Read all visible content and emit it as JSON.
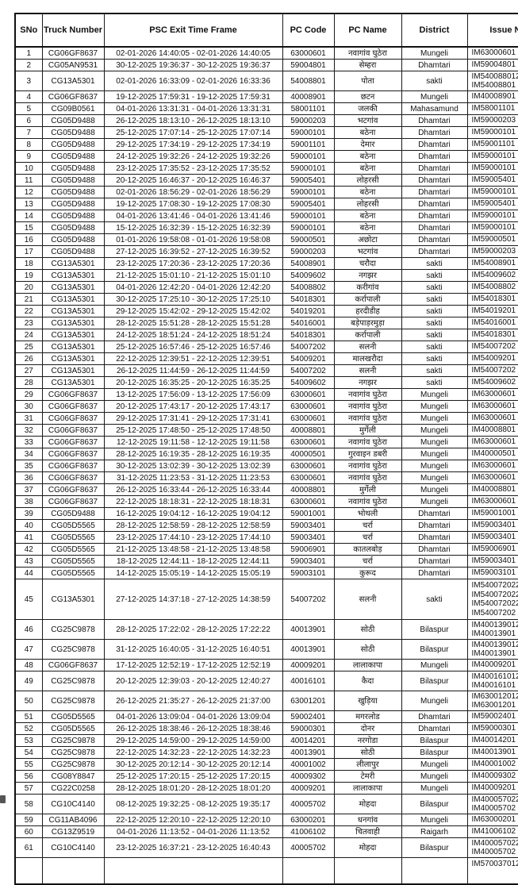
{
  "table": {
    "columns": [
      {
        "key": "sno",
        "label": "SNo"
      },
      {
        "key": "truck",
        "label": "Truck Number"
      },
      {
        "key": "time",
        "label": "PSC Exit Time Frame"
      },
      {
        "key": "code",
        "label": "PC Code"
      },
      {
        "key": "name",
        "label": "PC Name"
      },
      {
        "key": "district",
        "label": "District"
      },
      {
        "key": "issue",
        "label": "Issue Number"
      }
    ],
    "rows": [
      [
        "1",
        "CG06GF8637",
        "02-01-2026 14:40:05 - 02-01-2026 14:40:05",
        "63000601",
        "नवागांव घुठेरा",
        "Mungeli",
        "IM63000601"
      ],
      [
        "2",
        "CG05AN9531",
        "30-12-2025 19:36:37 - 30-12-2025 19:36:37",
        "59004801",
        "सेम्हरा",
        "Dhamtari",
        "IM59004801"
      ],
      [
        "3",
        "CG13A5301",
        "02-01-2026 16:33:09 - 02-01-2026 16:33:36",
        "54008801",
        "पोता",
        "sakti",
        "IM540088012\nIM54008801"
      ],
      [
        "4",
        "CG06GF8637",
        "19-12-2025 17:59:31 - 19-12-2025 17:59:31",
        "40008901",
        "छटन",
        "Mungeli",
        "IM40008901"
      ],
      [
        "5",
        "CG09B0561",
        "04-01-2026 13:31:31 - 04-01-2026 13:31:31",
        "58001101",
        "जलकी",
        "Mahasamund",
        "IM58001101"
      ],
      [
        "6",
        "CG05D9488",
        "26-12-2025 18:13:10 - 26-12-2025 18:13:10",
        "59000203",
        "भटगांव",
        "Dhamtari",
        "IM59000203"
      ],
      [
        "7",
        "CG05D9488",
        "25-12-2025 17:07:14 - 25-12-2025 17:07:14",
        "59000101",
        "बठेना",
        "Dhamtari",
        "IM59000101"
      ],
      [
        "8",
        "CG05D9488",
        "29-12-2025 17:34:19 - 29-12-2025 17:34:19",
        "59001101",
        "देमार",
        "Dhamtari",
        "IM59001101"
      ],
      [
        "9",
        "CG05D9488",
        "24-12-2025 19:32:26 - 24-12-2025 19:32:26",
        "59000101",
        "बठेना",
        "Dhamtari",
        "IM59000101"
      ],
      [
        "10",
        "CG05D9488",
        "23-12-2025 17:35:52 - 23-12-2025 17:35:52",
        "59000101",
        "बठेना",
        "Dhamtari",
        "IM59000101"
      ],
      [
        "11",
        "CG05D9488",
        "20-12-2025 16:46:37 - 20-12-2025 16:46:37",
        "59005401",
        "लोहरसी",
        "Dhamtari",
        "IM59005401"
      ],
      [
        "12",
        "CG05D9488",
        "02-01-2026 18:56:29 - 02-01-2026 18:56:29",
        "59000101",
        "बठेना",
        "Dhamtari",
        "IM59000101"
      ],
      [
        "13",
        "CG05D9488",
        "19-12-2025 17:08:30 - 19-12-2025 17:08:30",
        "59005401",
        "लोहरसी",
        "Dhamtari",
        "IM59005401"
      ],
      [
        "14",
        "CG05D9488",
        "04-01-2026 13:41:46 - 04-01-2026 13:41:46",
        "59000101",
        "बठेना",
        "Dhamtari",
        "IM59000101"
      ],
      [
        "15",
        "CG05D9488",
        "15-12-2025 16:32:39 - 15-12-2025 16:32:39",
        "59000101",
        "बठेना",
        "Dhamtari",
        "IM59000101"
      ],
      [
        "16",
        "CG05D9488",
        "01-01-2026 19:58:08 - 01-01-2026 19:58:08",
        "59000501",
        "अछोटा",
        "Dhamtari",
        "IM59000501"
      ],
      [
        "17",
        "CG05D9488",
        "27-12-2025 16:39:52 - 27-12-2025 16:39:52",
        "59000203",
        "भटगांव",
        "Dhamtari",
        "IM59000203"
      ],
      [
        "18",
        "CG13A5301",
        "23-12-2025 17:20:36 - 23-12-2025 17:20:36",
        "54008901",
        "चरौदा",
        "sakti",
        "IM54008901"
      ],
      [
        "19",
        "CG13A5301",
        "21-12-2025 15:01:10 - 21-12-2025 15:01:10",
        "54009602",
        "नगझर",
        "sakti",
        "IM54009602"
      ],
      [
        "20",
        "CG13A5301",
        "04-01-2026 12:42:20 - 04-01-2026 12:42:20",
        "54008802",
        "करीगांव",
        "sakti",
        "IM54008802"
      ],
      [
        "21",
        "CG13A5301",
        "30-12-2025 17:25:10 - 30-12-2025 17:25:10",
        "54018301",
        "कर्रापाली",
        "sakti",
        "IM54018301"
      ],
      [
        "22",
        "CG13A5301",
        "29-12-2025 15:42:02 - 29-12-2025 15:42:02",
        "54019201",
        "हरदीडीह",
        "sakti",
        "IM54019201"
      ],
      [
        "23",
        "CG13A5301",
        "28-12-2025 15:51:28 - 28-12-2025 15:51:28",
        "54016001",
        "बड़ेपाड़रमुड़ा",
        "sakti",
        "IM54016001"
      ],
      [
        "24",
        "CG13A5301",
        "24-12-2025 18:51:24 - 24-12-2025 18:51:24",
        "54018301",
        "कर्रापाली",
        "sakti",
        "IM54018301"
      ],
      [
        "25",
        "CG13A5301",
        "25-12-2025 16:57:46 - 25-12-2025 16:57:46",
        "54007202",
        "सलनी",
        "sakti",
        "IM54007202"
      ],
      [
        "26",
        "CG13A5301",
        "22-12-2025 12:39:51 - 22-12-2025 12:39:51",
        "54009201",
        "मालखरौदा",
        "sakti",
        "IM54009201"
      ],
      [
        "27",
        "CG13A5301",
        "26-12-2025 11:44:59 - 26-12-2025 11:44:59",
        "54007202",
        "सलनी",
        "sakti",
        "IM54007202"
      ],
      [
        "28",
        "CG13A5301",
        "20-12-2025 16:35:25 - 20-12-2025 16:35:25",
        "54009602",
        "नगझर",
        "sakti",
        "IM54009602"
      ],
      [
        "29",
        "CG06GF8637",
        "13-12-2025 17:56:09 - 13-12-2025 17:56:09",
        "63000601",
        "नवागांव घुठेरा",
        "Mungeli",
        "IM63000601"
      ],
      [
        "30",
        "CG06GF8637",
        "20-12-2025 17:43:17 - 20-12-2025 17:43:17",
        "63000601",
        "नवागांव घुठेरा",
        "Mungeli",
        "IM63000601"
      ],
      [
        "31",
        "CG06GF8637",
        "29-12-2025 17:31:41 - 29-12-2025 17:31:41",
        "63000601",
        "नवागांव घुठेरा",
        "Mungeli",
        "IM63000601"
      ],
      [
        "32",
        "CG06GF8637",
        "25-12-2025 17:48:50 - 25-12-2025 17:48:50",
        "40008801",
        "मुर्गेली",
        "Mungeli",
        "IM40008801"
      ],
      [
        "33",
        "CG06GF8637",
        "12-12-2025 19:11:58 - 12-12-2025 19:11:58",
        "63000601",
        "नवागांव घुठेरा",
        "Mungeli",
        "IM63000601"
      ],
      [
        "34",
        "CG06GF8637",
        "28-12-2025 16:19:35 - 28-12-2025 16:19:35",
        "40000501",
        "गुरवाइन डबरी",
        "Mungeli",
        "IM40000501"
      ],
      [
        "35",
        "CG06GF8637",
        "30-12-2025 13:02:39 - 30-12-2025 13:02:39",
        "63000601",
        "नवागांव घुठेरा",
        "Mungeli",
        "IM63000601"
      ],
      [
        "36",
        "CG06GF8637",
        "31-12-2025 11:23:53 - 31-12-2025 11:23:53",
        "63000601",
        "नवागांव घुठेरा",
        "Mungeli",
        "IM63000601"
      ],
      [
        "37",
        "CG06GF8637",
        "26-12-2025 16:33:44 - 26-12-2025 16:33:44",
        "40008801",
        "मुर्गेली",
        "Mungeli",
        "IM40008801"
      ],
      [
        "38",
        "CG06GF8637",
        "22-12-2025 18:18:31 - 22-12-2025 18:18:31",
        "63000601",
        "नवागांव घुठेरा",
        "Mungeli",
        "IM63000601"
      ],
      [
        "39",
        "CG05D9488",
        "16-12-2025 19:04:12 - 16-12-2025 19:04:12",
        "59001001",
        "भोथली",
        "Dhamtari",
        "IM59001001"
      ],
      [
        "40",
        "CG05D5565",
        "28-12-2025 12:58:59 - 28-12-2025 12:58:59",
        "59003401",
        "चर्रा",
        "Dhamtari",
        "IM59003401"
      ],
      [
        "41",
        "CG05D5565",
        "23-12-2025 17:44:10 - 23-12-2025 17:44:10",
        "59003401",
        "चर्रा",
        "Dhamtari",
        "IM59003401"
      ],
      [
        "42",
        "CG05D5565",
        "21-12-2025 13:48:58 - 21-12-2025 13:48:58",
        "59006901",
        "कातलबोड़",
        "Dhamtari",
        "IM59006901"
      ],
      [
        "43",
        "CG05D5565",
        "18-12-2025 12:44:11 - 18-12-2025 12:44:11",
        "59003401",
        "चर्रा",
        "Dhamtari",
        "IM59003401"
      ],
      [
        "44",
        "CG05D5565",
        "14-12-2025 15:05:19 - 14-12-2025 15:05:19",
        "59003101",
        "कुरूद",
        "Dhamtari",
        "IM59003101"
      ],
      [
        "45",
        "CG13A5301",
        "27-12-2025 14:37:18 - 27-12-2025 14:38:59",
        "54007202",
        "सलनी",
        "sakti",
        "IM540072022\nIM540072022\nIM540072022\nIM54007202"
      ],
      [
        "46",
        "CG25C9878",
        "28-12-2025 17:22:02 - 28-12-2025 17:22:22",
        "40013901",
        "सोठी",
        "Bilaspur",
        "IM400139012\nIM40013901"
      ],
      [
        "47",
        "CG25C9878",
        "31-12-2025 16:40:05 - 31-12-2025 16:40:51",
        "40013901",
        "सोठी",
        "Bilaspur",
        "IM400139012\nIM40013901"
      ],
      [
        "48",
        "CG06GF8637",
        "17-12-2025 12:52:19 - 17-12-2025 12:52:19",
        "40009201",
        "लालाकापा",
        "Mungeli",
        "IM40009201"
      ],
      [
        "49",
        "CG25C9878",
        "20-12-2025 12:39:03 - 20-12-2025 12:40:27",
        "40016101",
        "कैदा",
        "Bilaspur",
        "IM400161012\nIM40016101"
      ],
      [
        "50",
        "CG25C9878",
        "26-12-2025 21:35:27 - 26-12-2025 21:37:00",
        "63001201",
        "खुड़िया",
        "Mungeli",
        "IM630012012\nIM63001201"
      ],
      [
        "51",
        "CG05D5565",
        "04-01-2026 13:09:04 - 04-01-2026 13:09:04",
        "59002401",
        "मगरलोड",
        "Dhamtari",
        "IM59002401"
      ],
      [
        "52",
        "CG05D5565",
        "26-12-2025 18:38:46 - 26-12-2025 18:38:46",
        "59000301",
        "दोनर",
        "Dhamtari",
        "IM59000301"
      ],
      [
        "53",
        "CG25C9878",
        "29-12-2025 14:59:00 - 29-12-2025 14:59:00",
        "40014201",
        "नरगोडा",
        "Bilaspur",
        "IM40014201"
      ],
      [
        "54",
        "CG25C9878",
        "22-12-2025 14:32:23 - 22-12-2025 14:32:23",
        "40013901",
        "सोठी",
        "Bilaspur",
        "IM40013901"
      ],
      [
        "55",
        "CG25C9878",
        "30-12-2025 20:12:14 - 30-12-2025 20:12:14",
        "40001002",
        "लीलापुर",
        "Mungeli",
        "IM40001002"
      ],
      [
        "56",
        "CG08Y8847",
        "25-12-2025 17:20:15 - 25-12-2025 17:20:15",
        "40009302",
        "टेमरी",
        "Mungeli",
        "IM40009302"
      ],
      [
        "57",
        "CG22C0258",
        "28-12-2025 18:01:20 - 28-12-2025 18:01:20",
        "40009201",
        "लालाकापा",
        "Mungeli",
        "IM40009201"
      ],
      [
        "58",
        "CG10C4140",
        "08-12-2025 19:32:25 - 08-12-2025 19:35:17",
        "40005702",
        "मोहदा",
        "Bilaspur",
        "IM400057022\nIM40005702"
      ],
      [
        "59",
        "CG11AB4096",
        "22-12-2025 12:20:10 - 22-12-2025 12:20:10",
        "63000201",
        "धनगांव",
        "Mungeli",
        "IM63000201"
      ],
      [
        "60",
        "CG13Z9519",
        "04-01-2026 11:13:52 - 04-01-2026 11:13:52",
        "41006102",
        "चितवाही",
        "Raigarh",
        "IM41006102"
      ],
      [
        "61",
        "CG10C4140",
        "23-12-2025 16:37:21 - 23-12-2025 16:40:43",
        "40005702",
        "मोहदा",
        "Bilaspur",
        "IM400057022\nIM40005702"
      ]
    ],
    "partial_row": [
      "",
      "",
      "",
      "",
      "",
      "",
      "IM570037012"
    ]
  }
}
